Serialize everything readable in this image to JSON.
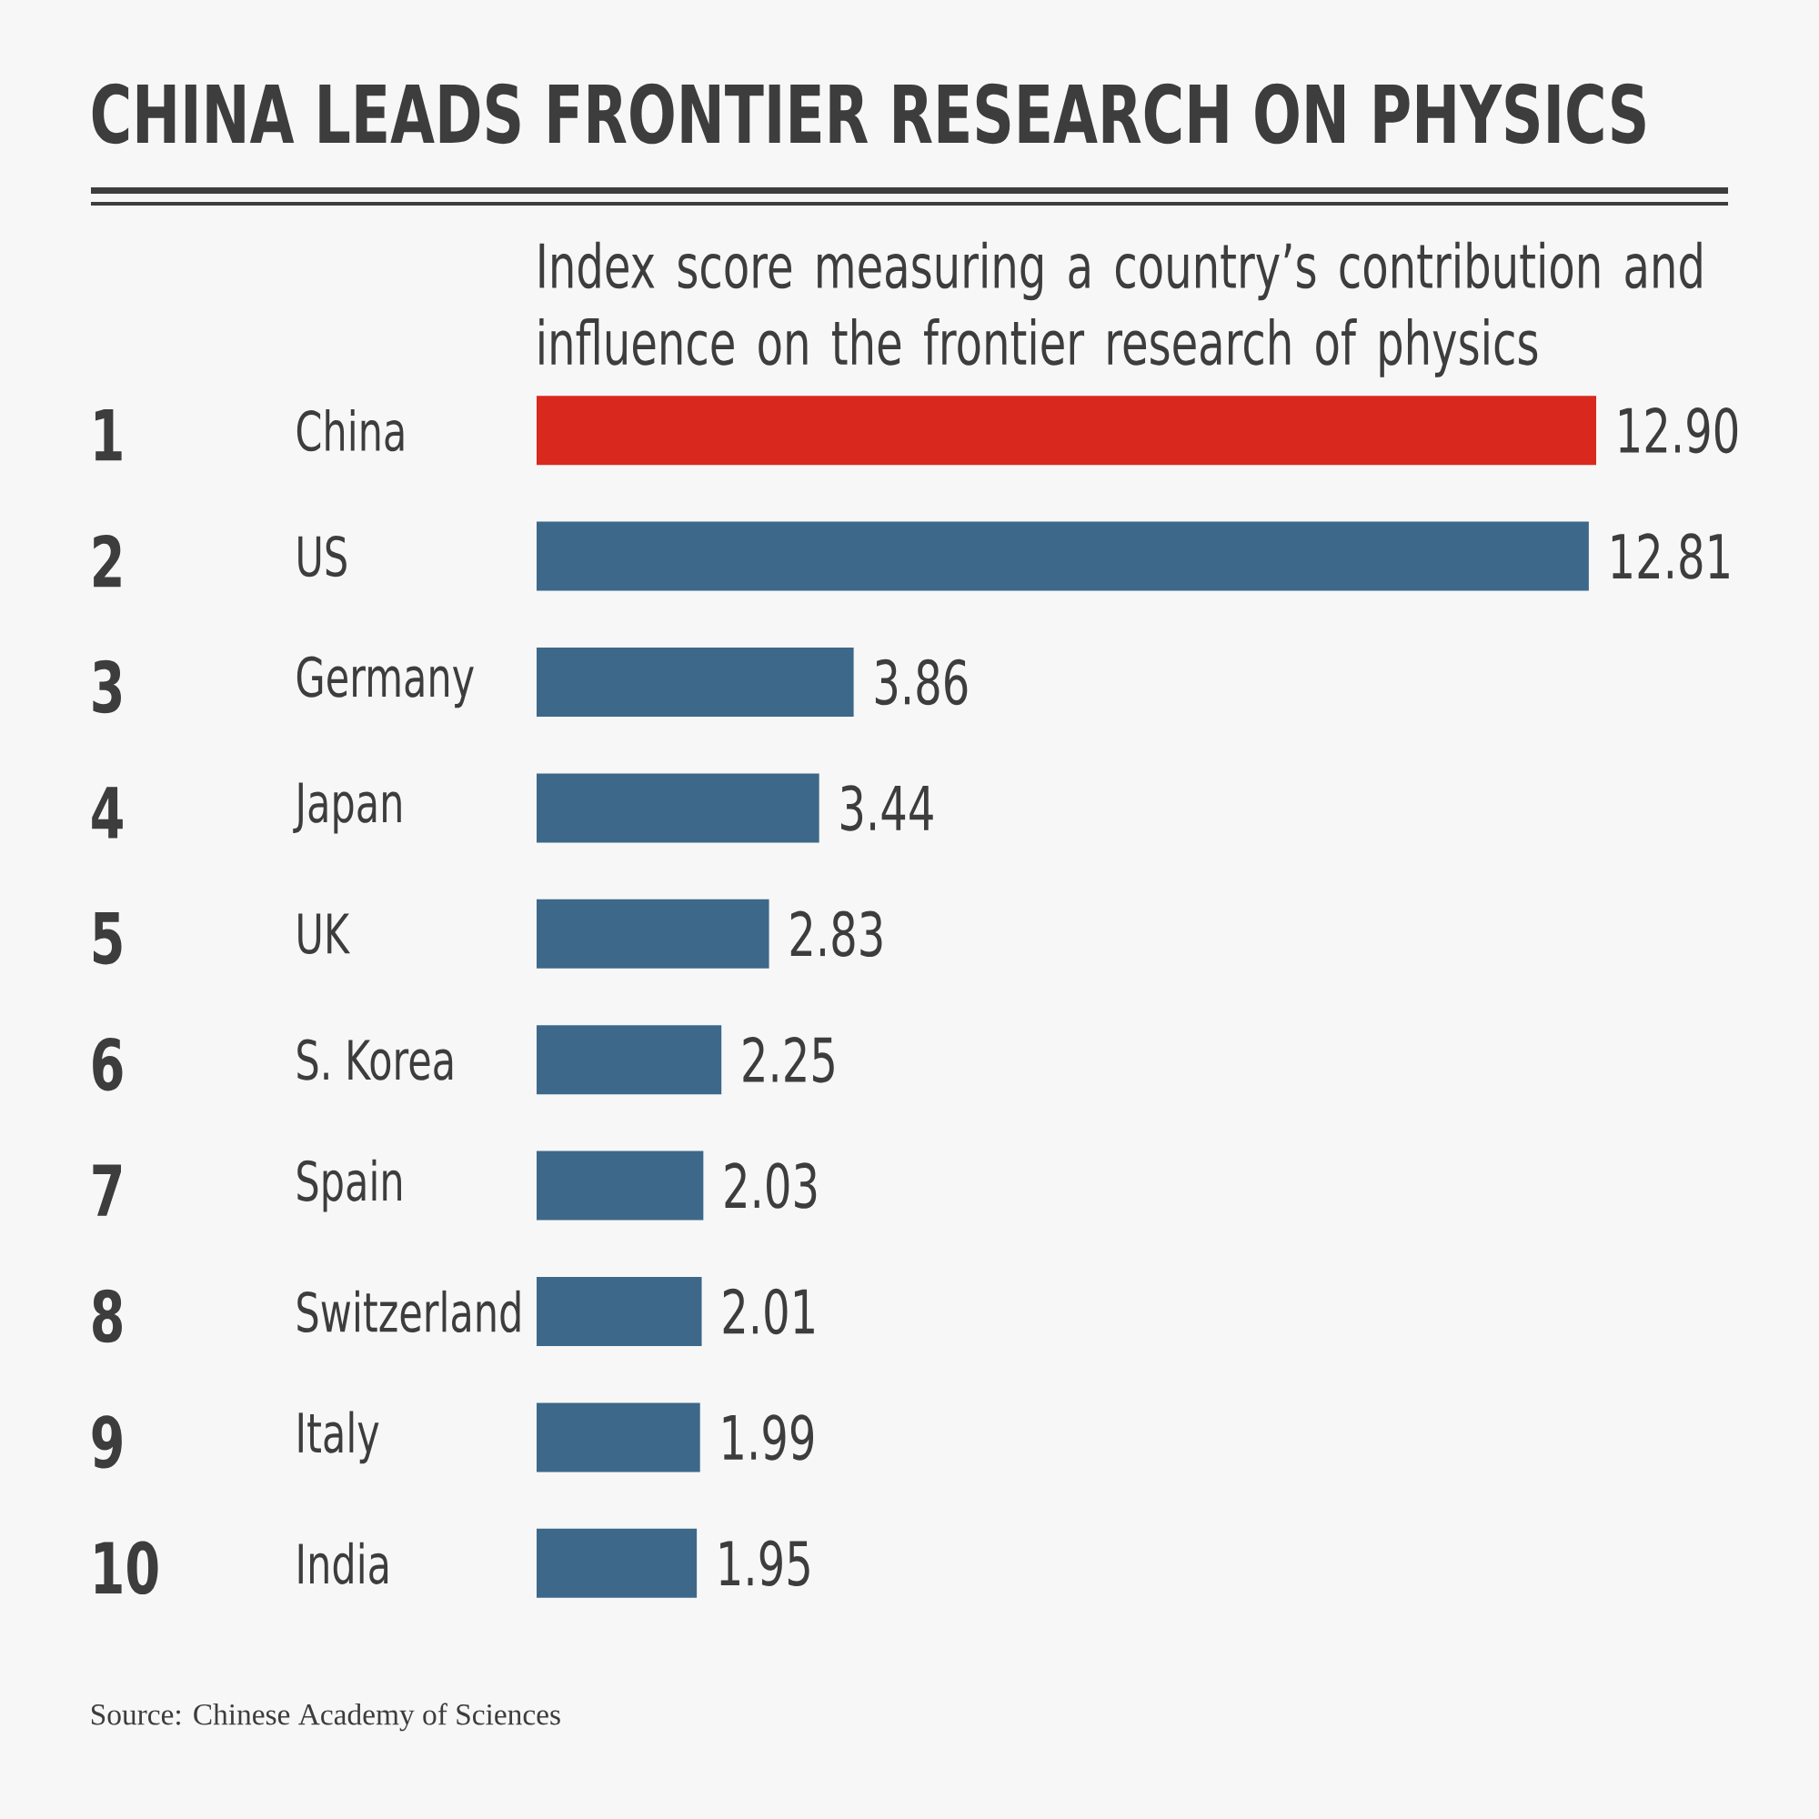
{
  "chart_data": {
    "type": "bar",
    "orientation": "horizontal",
    "title": "CHINA LEADS FRONTIER RESEARCH ON PHYSICS",
    "subtitle": "Index score measuring a country’s contribution and influence on the frontier research of physics",
    "categories": [
      "China",
      "US",
      "Germany",
      "Japan",
      "UK",
      "S. Korea",
      "Spain",
      "Switzerland",
      "Italy",
      "India"
    ],
    "values": [
      12.9,
      12.81,
      3.86,
      3.44,
      2.83,
      2.25,
      2.03,
      2.01,
      1.99,
      1.95
    ],
    "value_labels": [
      "12.90",
      "12.81",
      "3.86",
      "3.44",
      "2.83",
      "2.25",
      "2.03",
      "2.01",
      "1.99",
      "1.95"
    ],
    "colors": [
      "#d9281e",
      "#3d6889",
      "#3d6889",
      "#3d6889",
      "#3d6889",
      "#3d6889",
      "#3d6889",
      "#3d6889",
      "#3d6889",
      "#3d6889"
    ],
    "tick_labels": "y",
    "annotations": [
      "1",
      "2",
      "3",
      "4",
      "5",
      "6",
      "7",
      "8",
      "9",
      "10",
      "Source: Chinese Academy of Sciences"
    ]
  }
}
